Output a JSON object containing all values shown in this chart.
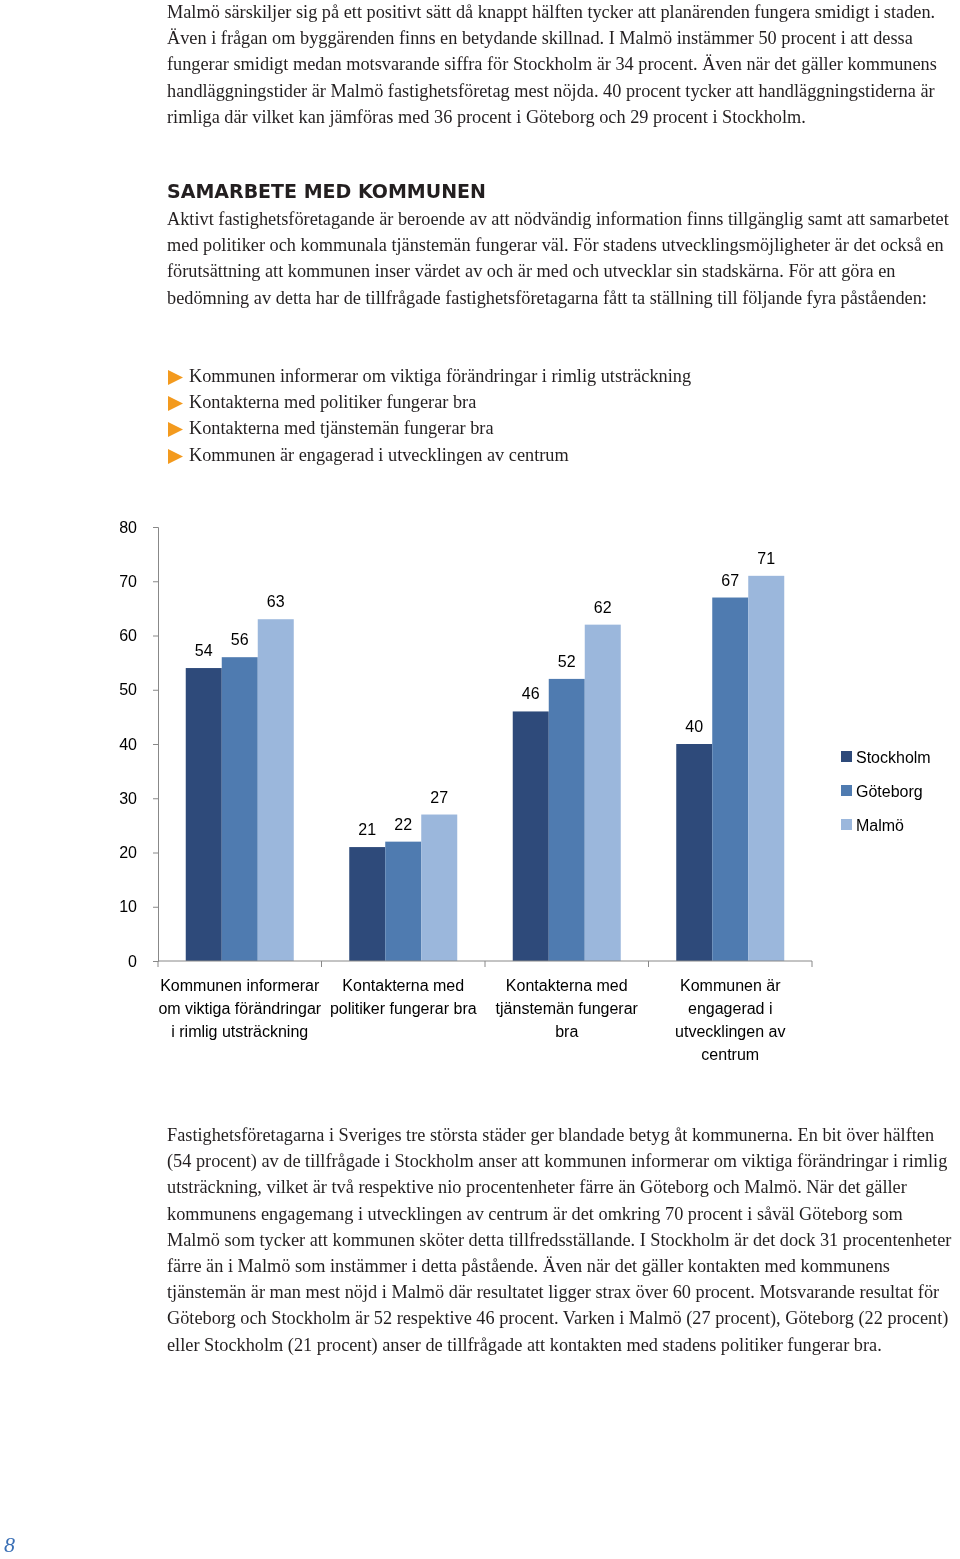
{
  "chart_data": {
    "type": "bar",
    "title": "SAMARBETE MED KOMMUNEN",
    "subtitle": "Aktivt fastighetsföretagande är beroende av att nödvändig information finns tillgänglig samt att samarbetet med politiker och kommunala tjänstemän fungerar väl. För stadens utvecklingsmöjligheter är det också en förutsättning att kommunen inser värdet av och är med och utvecklar sin stadskärna. För att göra en bedömning av detta har de tillfrågade fastighetsföretagarna fått ta ställning till följande fyra påståenden:",
    "annotations": [
      "Malmö särskiljer sig på ett positivt sätt då knappt hälften tycker att planärenden fungera smidigt i staden. Även i frågan om byggärenden finns en betydande skillnad. I Malmö instämmer 50 procent i att dessa fungerar smidigt medan motsvarande siffra för Stockholm är 34 procent. Även när det gäller kommunens handläggningstider är Malmö fastighetsföretag mest nöjda. 40 procent tycker att handläggningstiderna är rimliga där vilket kan jämföras med 36 procent i Göteborg och 29 procent i Stockholm.",
      "Kommunen informerar om viktiga förändringar i rimlig utsträckning",
      "Kontakterna med politiker fungerar bra",
      "Kontakterna med tjänstemän fungerar bra",
      "Kommunen är engagerad i utvecklingen av centrum",
      "Fastighetsföretagarna i Sveriges tre största städer ger blandade betyg åt kommunerna. En bit över hälften (54 procent) av de tillfrågade i Stockholm anser att kommunen informerar om viktiga förändringar i rimlig utsträckning, vilket är två respektive nio procentenheter färre än Göteborg och Malmö. När det gäller kommunens engagemang i utvecklingen av centrum är det omkring 70 procent i såväl Göteborg som Malmö som tycker att kommunen sköter detta tillfredsställande. I Stockholm är det dock 31 procentenheter färre än i Malmö som instämmer i detta påstående. Även när det gäller kontakten med kommunens tjänstemän är man mest nöjd i Malmö där resultatet ligger strax över 60 procent. Motsvarande resultat för Göteborg och Stockholm är 52 respektive 46 procent. Varken i Malmö (27 procent), Göteborg (22 procent) eller Stockholm (21 procent) anser de tillfrågade att kontakten med stadens politiker fungerar bra.",
      "8"
    ],
    "categories": [
      "Kommunen informerar om viktiga förändringar i rimlig utsträckning",
      "Kontakterna med politiker fungerar bra",
      "Kontakterna med tjänstemän fungerar bra",
      "Kommunen är engagerad i utvecklingen av centrum"
    ],
    "series": [
      {
        "name": "Stockholm",
        "color": "#2e4a7a",
        "values": [
          54,
          21,
          46,
          40
        ]
      },
      {
        "name": "Göteborg",
        "color": "#4f7bb0",
        "values": [
          56,
          22,
          52,
          67
        ]
      },
      {
        "name": "Malmö",
        "color": "#9bb7dc",
        "values": [
          63,
          27,
          62,
          71
        ]
      }
    ],
    "ylim": [
      0,
      80
    ],
    "yticks": [
      0,
      10,
      20,
      30,
      40,
      50,
      60,
      70,
      80
    ],
    "data_labels": true,
    "legend": "right",
    "grid": false
  }
}
